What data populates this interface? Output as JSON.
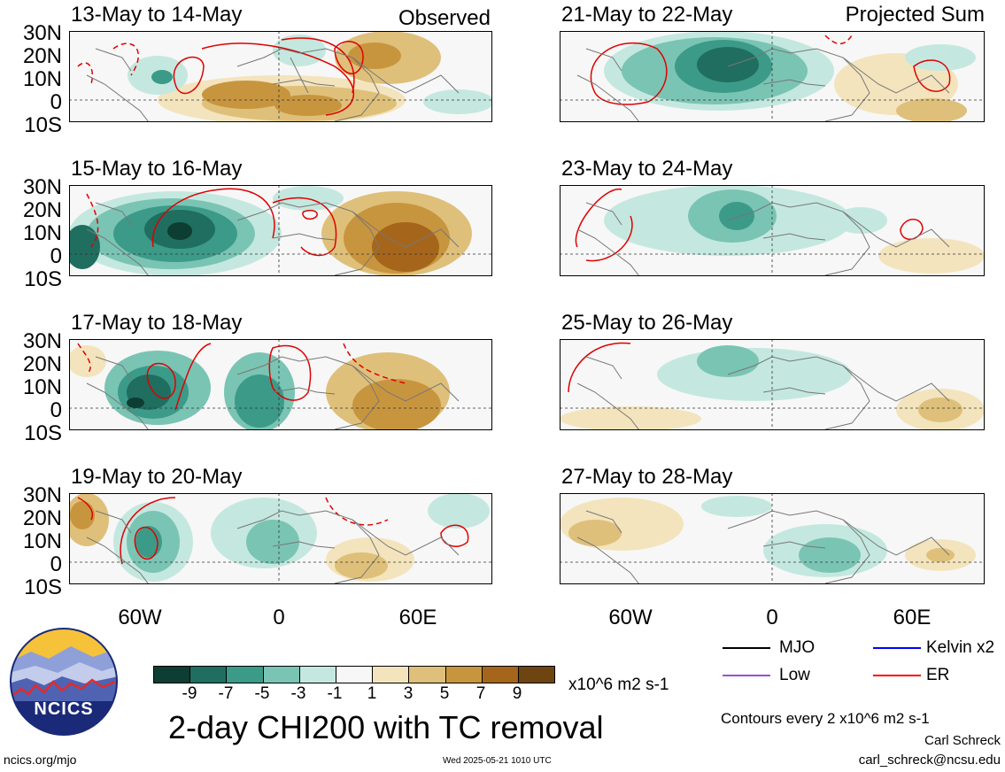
{
  "left_column": {
    "tag": "Observed",
    "panels": [
      {
        "title": "13-May to 14-May"
      },
      {
        "title": "15-May to 16-May"
      },
      {
        "title": "17-May to 18-May"
      },
      {
        "title": "19-May to 20-May"
      }
    ]
  },
  "right_column": {
    "tag": "Projected Sum",
    "panels": [
      {
        "title": "21-May to 22-May"
      },
      {
        "title": "23-May to 24-May"
      },
      {
        "title": "25-May to 26-May"
      },
      {
        "title": "27-May to 28-May"
      }
    ]
  },
  "lat_labels": [
    "30N",
    "20N",
    "10N",
    "0",
    "10S"
  ],
  "lon_labels": [
    "60W",
    "0",
    "60E"
  ],
  "legend": {
    "items": [
      {
        "label": "MJO",
        "color": "#000000"
      },
      {
        "label": "Kelvin x2",
        "color": "#0000ff"
      },
      {
        "label": "Low",
        "color": "#9a50d0"
      },
      {
        "label": "ER",
        "color": "#ff0000"
      }
    ],
    "contours_note": "Contours every 2 x10^6 m2 s-1"
  },
  "colorbar": {
    "tick_labels": [
      "-9",
      "-7",
      "-5",
      "-3",
      "-1",
      "1",
      "3",
      "5",
      "7",
      "9"
    ],
    "colors": [
      "#0d3d33",
      "#1f6e60",
      "#3c9a88",
      "#7ac4b4",
      "#c4e8df",
      "#f7f7f7",
      "#f3e4bd",
      "#dfc07a",
      "#c8953f",
      "#a5661c",
      "#6e4510"
    ],
    "units": "x10^6 m2 s-1"
  },
  "title": "2-day CHI200 with TC removal",
  "logo": {
    "text": "NCICS"
  },
  "footer": {
    "url": "ncics.org/mjo",
    "timestamp": "Wed 2025-05-21 1010 UTC",
    "author": "Carl Schreck",
    "email": "carl_schreck@ncsu.edu"
  }
}
